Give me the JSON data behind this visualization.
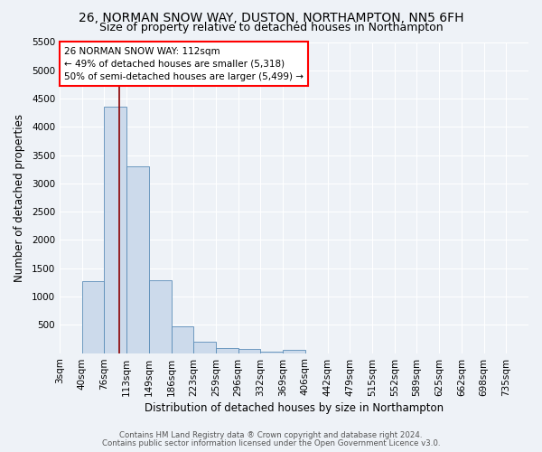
{
  "title_line1": "26, NORMAN SNOW WAY, DUSTON, NORTHAMPTON, NN5 6FH",
  "title_line2": "Size of property relative to detached houses in Northampton",
  "xlabel": "Distribution of detached houses by size in Northampton",
  "ylabel": "Number of detached properties",
  "footnote1": "Contains HM Land Registry data ® Crown copyright and database right 2024.",
  "footnote2": "Contains public sector information licensed under the Open Government Licence v3.0.",
  "bin_labels": [
    "3sqm",
    "40sqm",
    "76sqm",
    "113sqm",
    "149sqm",
    "186sqm",
    "223sqm",
    "259sqm",
    "296sqm",
    "332sqm",
    "369sqm",
    "406sqm",
    "442sqm",
    "479sqm",
    "515sqm",
    "552sqm",
    "589sqm",
    "625sqm",
    "662sqm",
    "698sqm",
    "735sqm"
  ],
  "bar_values": [
    0,
    1270,
    4350,
    3300,
    1290,
    480,
    200,
    90,
    70,
    30,
    50,
    0,
    0,
    0,
    0,
    0,
    0,
    0,
    0,
    0
  ],
  "ylim": [
    0,
    5500
  ],
  "yticks": [
    0,
    500,
    1000,
    1500,
    2000,
    2500,
    3000,
    3500,
    4000,
    4500,
    5000,
    5500
  ],
  "bar_color": "#ccdaeb",
  "bar_edge_color": "#5b8db8",
  "vline_x_index": 2.67,
  "vline_color": "#8b0000",
  "annotation_text": "26 NORMAN SNOW WAY: 112sqm\n← 49% of detached houses are smaller (5,318)\n50% of semi-detached houses are larger (5,499) →",
  "background_color": "#eef2f7",
  "grid_color": "#ffffff",
  "title_fontsize": 10,
  "subtitle_fontsize": 9,
  "axis_label_fontsize": 8.5,
  "tick_fontsize": 7.5,
  "annot_fontsize": 7.5
}
